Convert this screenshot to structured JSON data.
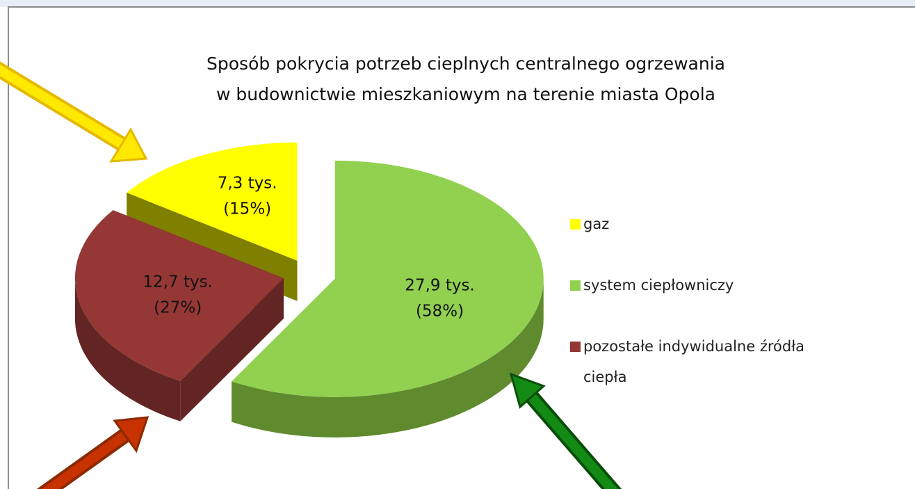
{
  "chart_data": {
    "type": "pie3d",
    "title": "Sposób pokrycia potrzeb cieplnych centralnego ogrzewania w budownictwie mieszkaniowym na terenie miasta Opola",
    "categories": [
      "gaz",
      "system ciepłowniczy",
      "pozostałe indywidualne źródła ciepła"
    ],
    "values": [
      7.3,
      27.9,
      12.7
    ],
    "value_labels": [
      "7,3 tys.",
      "27,9 tys.",
      "12,7 tys."
    ],
    "percent_labels": [
      "(15%)",
      "(58%)",
      "(27%)"
    ],
    "colors": [
      "#ffff00",
      "#92d050",
      "#953735"
    ],
    "side_colors": [
      "#7f7f00",
      "#5f8a2e",
      "#632523"
    ],
    "legend": "right"
  }
}
